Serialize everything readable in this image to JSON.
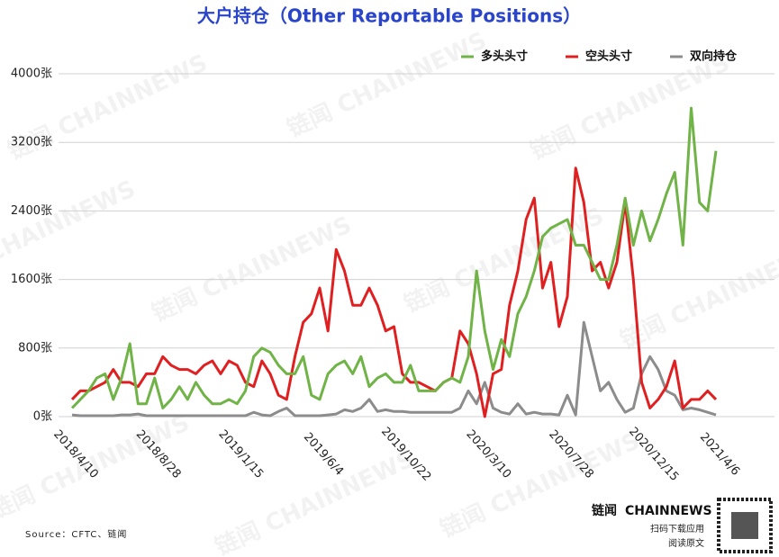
{
  "chart_data": {
    "type": "line",
    "title": "大户持仓（Other Reportable Positions）",
    "source": "Source：CFTC、链闻",
    "watermark": "链闻 CHAINNEWS",
    "logo": {
      "name": "链闻",
      "brand": "CHAINNEWS",
      "line1": "扫码下载应用",
      "line2": "阅读原文"
    },
    "categories": [
      "2018/4/10",
      null,
      null,
      null,
      null,
      null,
      null,
      null,
      null,
      null,
      "2018/8/28",
      null,
      null,
      null,
      null,
      null,
      null,
      null,
      null,
      null,
      "2019/1/15",
      null,
      null,
      null,
      null,
      null,
      null,
      null,
      null,
      null,
      "2019/6/4",
      null,
      null,
      null,
      null,
      null,
      null,
      null,
      null,
      null,
      "2019/10/22",
      null,
      null,
      null,
      null,
      null,
      null,
      null,
      null,
      null,
      "2020/3/10",
      null,
      null,
      null,
      null,
      null,
      null,
      null,
      null,
      null,
      "2020/7/28",
      null,
      null,
      null,
      null,
      null,
      null,
      null,
      null,
      null,
      "2020/12/15",
      null,
      null,
      null,
      null,
      null,
      null,
      null,
      "2021/4/6"
    ],
    "series": [
      {
        "name": "多头头寸",
        "color": "#70b347",
        "values": [
          100,
          200,
          300,
          450,
          500,
          200,
          450,
          850,
          150,
          150,
          450,
          100,
          200,
          350,
          200,
          400,
          250,
          150,
          150,
          200,
          150,
          300,
          700,
          800,
          750,
          600,
          500,
          500,
          700,
          250,
          200,
          500,
          600,
          650,
          500,
          700,
          350,
          450,
          500,
          400,
          400,
          600,
          300,
          300,
          300,
          400,
          450,
          400,
          700,
          1700,
          1000,
          550,
          900,
          700,
          1200,
          1400,
          1700,
          2100,
          2200,
          2250,
          2300,
          2000,
          2000,
          1800,
          1600,
          1600,
          2000,
          2550,
          2000,
          2400,
          2050,
          2300,
          2600,
          2850,
          2000,
          3600,
          2500,
          2400,
          3100
        ]
      },
      {
        "name": "空头头寸",
        "color": "#e02020",
        "values": [
          200,
          300,
          300,
          350,
          400,
          550,
          400,
          400,
          350,
          500,
          500,
          700,
          600,
          550,
          550,
          500,
          600,
          650,
          500,
          650,
          600,
          400,
          350,
          650,
          500,
          250,
          200,
          700,
          1100,
          1200,
          1500,
          1000,
          1950,
          1700,
          1300,
          1300,
          1500,
          1300,
          1000,
          1050,
          500,
          400,
          400,
          350,
          300,
          400,
          450,
          1000,
          850,
          500,
          0,
          500,
          550,
          1300,
          1700,
          2300,
          2550,
          1500,
          1800,
          1050,
          1400,
          2900,
          2500,
          1700,
          1800,
          1500,
          1800,
          2500,
          1600,
          400,
          100,
          200,
          350,
          650,
          100,
          200,
          200,
          300,
          200
        ]
      },
      {
        "name": "双向持仓",
        "color": "#8c8c8c",
        "values": [
          20,
          10,
          10,
          10,
          10,
          10,
          20,
          20,
          30,
          10,
          10,
          10,
          10,
          10,
          10,
          10,
          10,
          10,
          10,
          10,
          10,
          10,
          50,
          20,
          10,
          60,
          100,
          10,
          10,
          10,
          10,
          20,
          30,
          80,
          60,
          100,
          200,
          60,
          80,
          60,
          60,
          50,
          50,
          50,
          50,
          50,
          50,
          100,
          300,
          150,
          400,
          100,
          50,
          30,
          150,
          30,
          50,
          30,
          30,
          20,
          250,
          20,
          1100,
          700,
          300,
          400,
          200,
          50,
          100,
          500,
          700,
          550,
          300,
          250,
          80,
          100,
          80,
          50,
          20
        ]
      }
    ],
    "ylim": [
      0,
      4000
    ],
    "yticks": [
      {
        "value": 0,
        "label": "0张"
      },
      {
        "value": 800,
        "label": "800张"
      },
      {
        "value": 1600,
        "label": "1600张"
      },
      {
        "value": 2400,
        "label": "2400张"
      },
      {
        "value": 3200,
        "label": "3200张"
      },
      {
        "value": 4000,
        "label": "4000张"
      }
    ],
    "grid": true
  }
}
